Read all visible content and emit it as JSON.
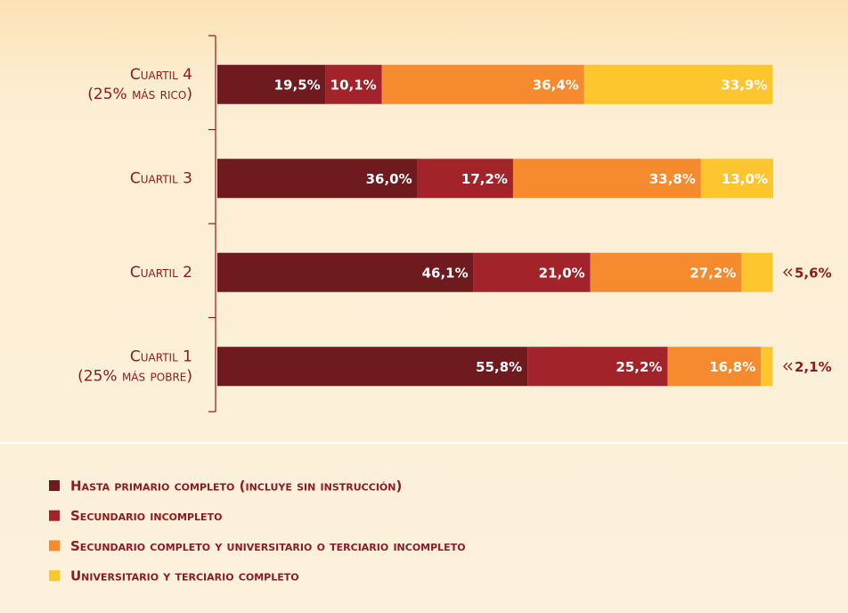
{
  "chart_data": {
    "type": "stacked_bar",
    "orientation": "horizontal",
    "categories": [
      [
        "Cuartil 4",
        "(25% más rico)"
      ],
      [
        "Cuartil 3"
      ],
      [
        "Cuartil 2"
      ],
      [
        "Cuartil 1",
        "(25% más pobre)"
      ]
    ],
    "xlim": [
      0,
      100
    ],
    "series": [
      {
        "name": "Hasta primario completo (incluye sin instrucción)",
        "color": "#6e1a1e",
        "values": [
          19.5,
          36.0,
          46.1,
          55.8
        ],
        "value_labels": [
          "19,5%",
          "36,0%",
          "46,1%",
          "55,8%"
        ]
      },
      {
        "name": "Secundario incompleto",
        "color": "#a3232b",
        "values": [
          10.1,
          17.2,
          21.0,
          25.2
        ],
        "value_labels": [
          "10,1%",
          "17,2%",
          "21,0%",
          "25,2%"
        ]
      },
      {
        "name": "Secundario completo y universitario o terciario incompleto",
        "color": "#f58a2e",
        "values": [
          36.4,
          33.8,
          27.2,
          16.8
        ],
        "value_labels": [
          "36,4%",
          "33,8%",
          "27,2%",
          "16,8%"
        ]
      },
      {
        "name": "Universitario y terciario completo",
        "color": "#fdc52e",
        "values": [
          33.9,
          13.0,
          5.6,
          2.1
        ],
        "value_labels": [
          "33,9%",
          "13,0%",
          "5,6%",
          "2,1%"
        ]
      }
    ]
  }
}
